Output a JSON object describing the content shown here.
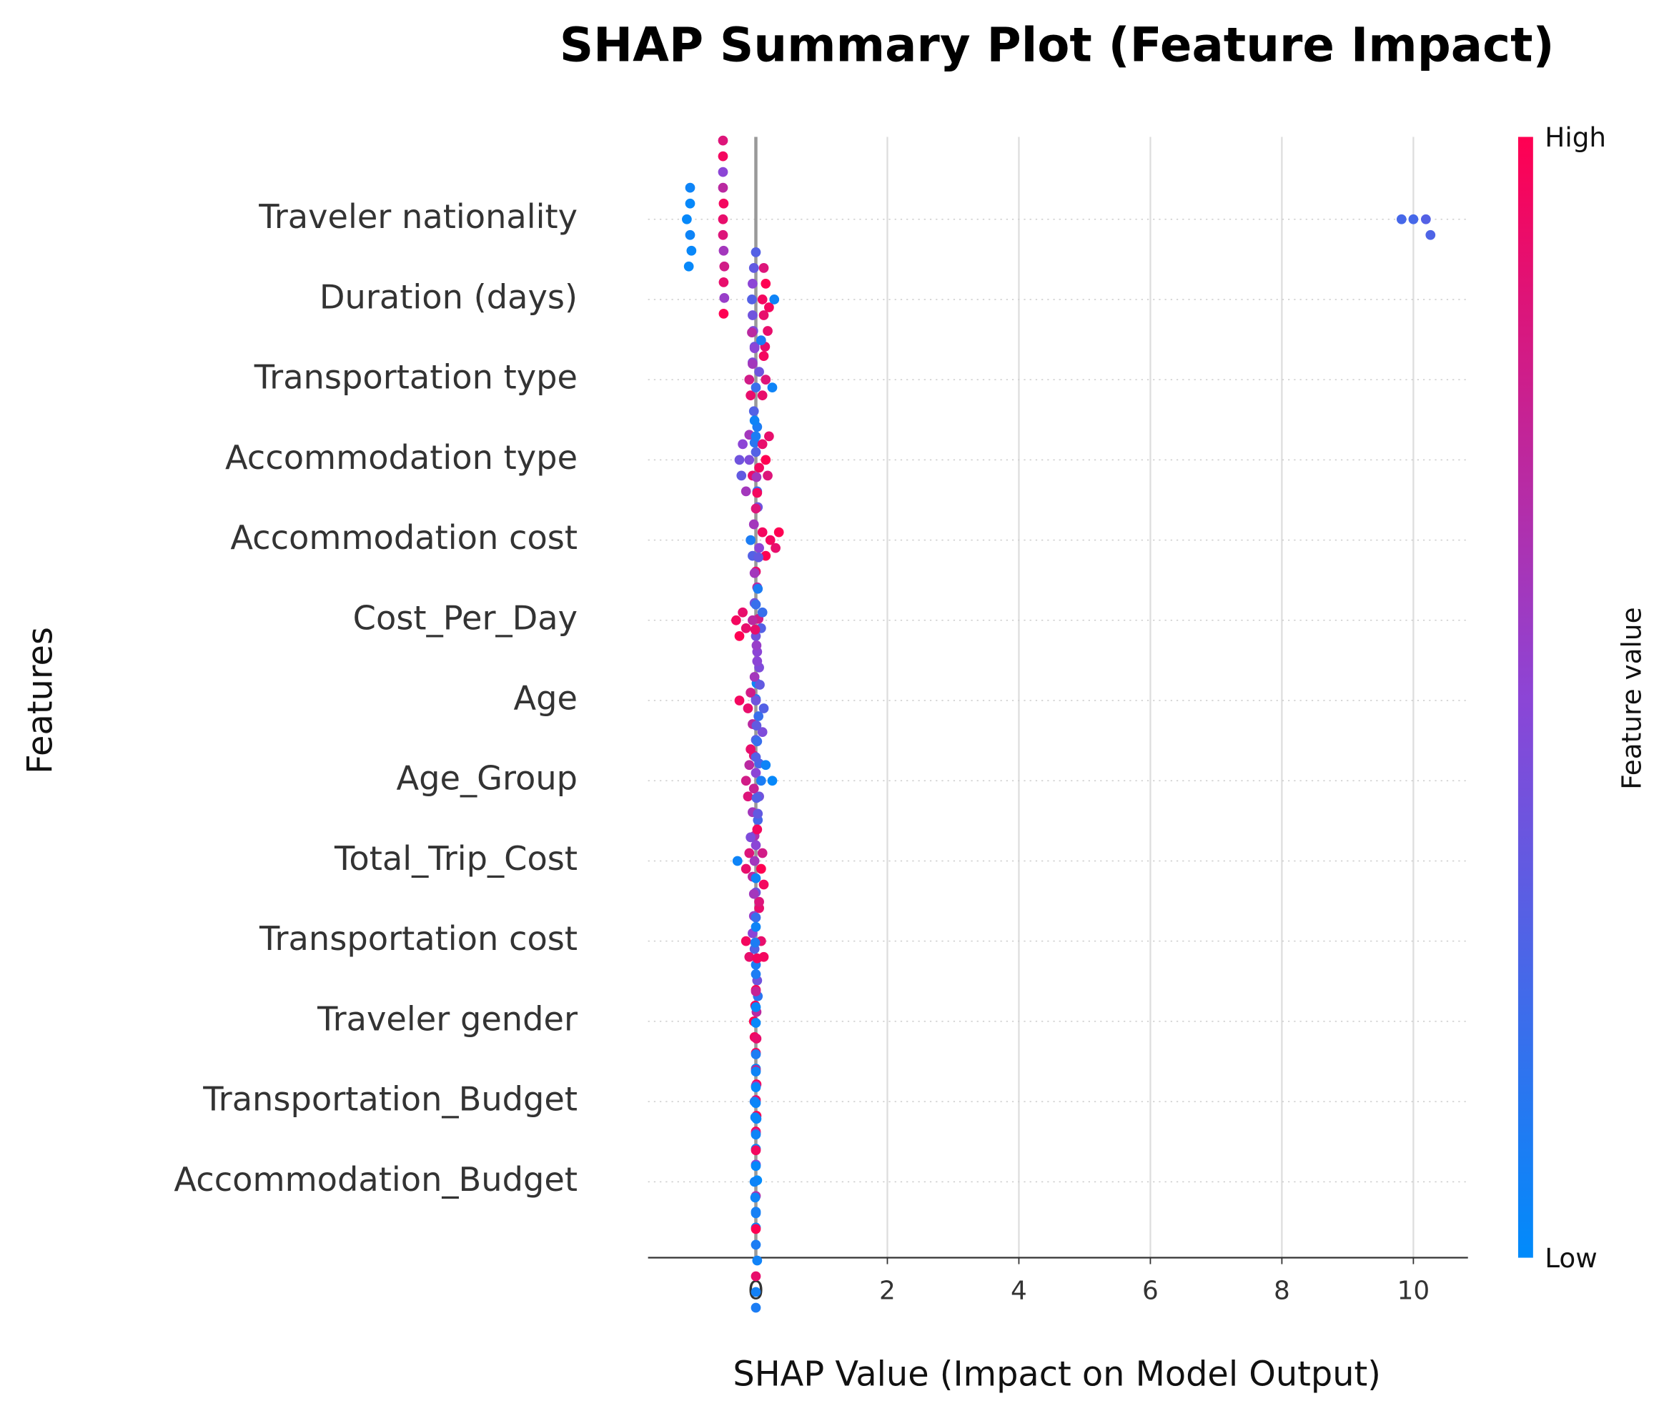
{
  "chart_data": {
    "type": "beeswarm",
    "title": "SHAP Summary Plot (Feature Impact)",
    "xlabel": "SHAP Value (Impact on Model Output)",
    "ylabel": "Features",
    "xlim": [
      -1.64,
      10.83
    ],
    "xticks": [
      0,
      2,
      4,
      6,
      8,
      10
    ],
    "grid": true,
    "colorbar": {
      "label": "Feature value",
      "high_label": "High",
      "low_label": "Low",
      "low_color": "#008bfb",
      "mid_color": "#8c45d6",
      "high_color": "#ff0052"
    },
    "features": [
      {
        "name": "Traveler nationality",
        "values": [
          -1.05,
          -1.0,
          -1.0,
          -0.98,
          -1.0,
          -1.02,
          -0.5,
          -0.5,
          -0.49,
          -0.49,
          -0.5,
          -0.48,
          -0.5,
          -0.49,
          -0.5,
          -0.48,
          -0.5,
          -0.49,
          9.82,
          10.0,
          10.19,
          10.26
        ],
        "feature_values": [
          0.02,
          0.05,
          0.02,
          0.03,
          0.05,
          0.02,
          0.9,
          0.85,
          0.95,
          0.6,
          0.7,
          0.8,
          0.5,
          0.9,
          0.95,
          0.55,
          0.85,
          1.0,
          0.25,
          0.25,
          0.3,
          0.28
        ]
      },
      {
        "name": "Duration (days)",
        "values": [
          -0.06,
          -0.05,
          -0.05,
          -0.04,
          -0.03,
          -0.02,
          0.0,
          0.1,
          0.12,
          0.15,
          0.18,
          0.2,
          0.12,
          0.28,
          0.14,
          -0.05
        ],
        "feature_values": [
          0.3,
          0.4,
          0.5,
          0.45,
          0.35,
          0.4,
          0.3,
          0.95,
          0.9,
          1.0,
          0.9,
          0.95,
          0.85,
          0.05,
          0.9,
          0.45
        ]
      },
      {
        "name": "Transportation type",
        "values": [
          -0.1,
          -0.08,
          -0.05,
          -0.03,
          -0.02,
          0.0,
          0.02,
          0.05,
          0.1,
          0.12,
          0.15,
          0.25,
          -0.06,
          -0.02,
          0.08,
          -0.1
        ],
        "feature_values": [
          0.8,
          0.9,
          0.6,
          0.3,
          0.5,
          0.2,
          0.1,
          0.4,
          0.9,
          0.95,
          0.85,
          0.05,
          0.7,
          0.15,
          0.1,
          0.6
        ]
      },
      {
        "name": "Accommodation type",
        "values": [
          -0.25,
          -0.22,
          -0.2,
          -0.15,
          -0.1,
          -0.05,
          0.0,
          0.0,
          0.02,
          0.05,
          0.1,
          0.15,
          0.18,
          0.2,
          -0.02,
          0.03
        ],
        "feature_values": [
          0.4,
          0.35,
          0.5,
          0.6,
          0.45,
          0.9,
          0.3,
          0.1,
          0.2,
          0.95,
          0.9,
          1.0,
          0.85,
          0.9,
          0.05,
          0.4
        ]
      },
      {
        "name": "Accommodation cost",
        "values": [
          -0.08,
          -0.05,
          -0.03,
          0.0,
          0.0,
          0.02,
          0.02,
          0.05,
          0.1,
          0.15,
          0.22,
          0.3,
          0.35,
          -0.02,
          0.01,
          0.04
        ],
        "feature_values": [
          0.1,
          0.3,
          0.6,
          0.9,
          0.85,
          0.7,
          0.95,
          0.5,
          0.95,
          1.0,
          0.95,
          0.9,
          1.0,
          0.4,
          0.6,
          0.8
        ]
      },
      {
        "name": "Cost_Per_Day",
        "values": [
          -0.3,
          -0.25,
          -0.2,
          -0.15,
          -0.05,
          0.0,
          0.0,
          0.02,
          0.03,
          0.05,
          0.08,
          0.1,
          -0.02,
          0.01,
          0.04,
          0.0
        ],
        "feature_values": [
          0.95,
          1.0,
          0.9,
          0.9,
          0.7,
          0.4,
          0.2,
          0.5,
          0.1,
          0.45,
          0.3,
          0.2,
          0.6,
          0.05,
          0.35,
          0.15
        ]
      },
      {
        "name": "Age",
        "values": [
          -0.25,
          -0.12,
          -0.08,
          -0.05,
          -0.02,
          0.0,
          0.0,
          0.02,
          0.04,
          0.06,
          0.1,
          0.12,
          -0.03,
          0.01,
          0.05,
          -0.01
        ],
        "feature_values": [
          0.95,
          0.9,
          0.8,
          0.7,
          0.6,
          0.4,
          0.3,
          0.5,
          0.2,
          0.35,
          0.45,
          0.3,
          0.85,
          0.55,
          0.25,
          0.9
        ]
      },
      {
        "name": "Age_Group",
        "values": [
          -0.15,
          -0.12,
          -0.1,
          -0.05,
          -0.03,
          0.0,
          0.0,
          0.02,
          0.05,
          0.08,
          0.15,
          0.25,
          -0.08,
          0.03,
          -0.02,
          0.01
        ],
        "feature_values": [
          0.8,
          0.85,
          0.7,
          0.6,
          0.75,
          0.5,
          0.3,
          0.2,
          0.4,
          0.1,
          0.05,
          0.02,
          0.9,
          0.25,
          0.65,
          0.35
        ]
      },
      {
        "name": "Total_Trip_Cost",
        "values": [
          -0.28,
          -0.15,
          -0.1,
          -0.05,
          -0.02,
          0.0,
          0.0,
          0.02,
          0.05,
          0.08,
          0.1,
          0.12,
          -0.08,
          0.03,
          -0.03,
          0.01
        ],
        "feature_values": [
          0.05,
          0.9,
          0.85,
          0.7,
          0.6,
          0.5,
          0.4,
          0.95,
          0.9,
          1.0,
          0.8,
          0.95,
          0.45,
          0.35,
          0.55,
          0.3
        ]
      },
      {
        "name": "Transportation cost",
        "values": [
          -0.15,
          -0.1,
          -0.05,
          -0.02,
          0.0,
          0.0,
          0.02,
          0.05,
          0.08,
          0.12,
          -0.03,
          0.03,
          0.0,
          0.01
        ],
        "feature_values": [
          0.95,
          0.9,
          0.5,
          0.3,
          0.1,
          0.2,
          0.4,
          0.85,
          0.9,
          0.95,
          0.6,
          0.15,
          0.05,
          0.7
        ]
      },
      {
        "name": "Traveler gender",
        "values": [
          -0.03,
          -0.02,
          -0.01,
          0.0,
          0.0,
          0.0,
          0.0,
          0.01,
          0.02,
          0.0,
          -0.01,
          0.01,
          0.0,
          0.0
        ],
        "feature_values": [
          1.0,
          0.95,
          1.0,
          0.95,
          1.0,
          0.05,
          0.1,
          1.0,
          0.95,
          0.9,
          0.1,
          1.0,
          0.05,
          1.0
        ]
      },
      {
        "name": "Transportation_Budget",
        "values": [
          -0.02,
          -0.01,
          0.0,
          0.0,
          0.0,
          0.0,
          0.0,
          0.0,
          0.01,
          0.02,
          0.0,
          0.0,
          0.0,
          0.0,
          0.0,
          0.0
        ],
        "feature_values": [
          0.1,
          0.05,
          0.6,
          0.7,
          0.8,
          0.05,
          0.1,
          0.5,
          0.9,
          0.0,
          0.02,
          0.65,
          0.03,
          0.08,
          0.75,
          0.05
        ]
      },
      {
        "name": "Accommodation_Budget",
        "values": [
          -0.02,
          -0.01,
          0.0,
          0.0,
          0.0,
          0.0,
          0.0,
          0.0,
          0.01,
          0.02,
          0.0,
          0.0,
          0.0,
          0.0,
          0.0,
          0.0
        ],
        "feature_values": [
          0.05,
          0.05,
          0.02,
          0.08,
          0.95,
          1.0,
          0.05,
          0.1,
          0.03,
          0.06,
          0.04,
          0.9,
          0.02,
          0.07,
          0.05,
          0.1
        ]
      }
    ]
  }
}
